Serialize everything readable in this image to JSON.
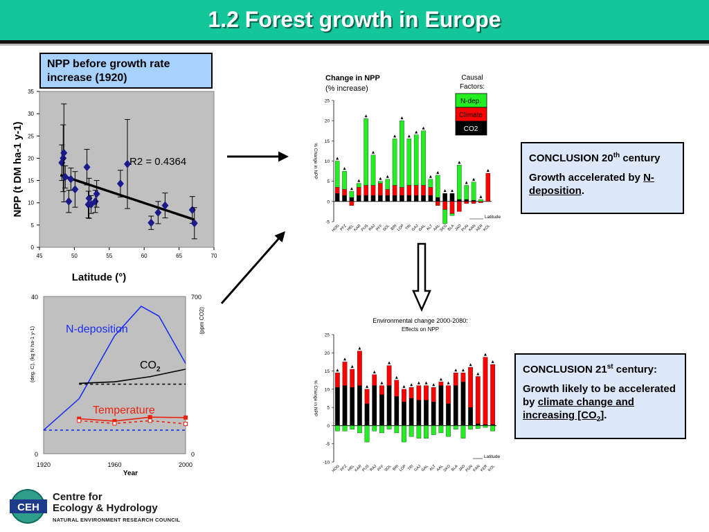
{
  "slide": {
    "title": "1.2 Forest growth in Europe",
    "box_npp": "NPP before growth rate increase (1920)",
    "conclusion20": {
      "heading": "CONCLUSION 20",
      "sup": "th",
      "heading_tail": "century",
      "line1": "Growth accelerated by",
      "line2": "N-deposition",
      "line2_tail": "."
    },
    "conclusion21": {
      "heading": "CONCLUSION 21",
      "sup": "st",
      "heading_tail": "century:",
      "line1": "Growth likely to be accelerated by",
      "line2": "climate change and increasing [CO",
      "line2_sub": "2",
      "line2_tail": "]",
      "line2_end": "."
    },
    "logo": {
      "badge": "CEH",
      "line1": "Centre for",
      "line2": "Ecology & Hydrology",
      "line3": "NATURAL ENVIRONMENT RESEARCH COUNCIL"
    }
  },
  "chart_data": [
    {
      "type": "scatter",
      "ylabel": "NPP (t DM ha-1 y-1)",
      "xlabel": "Latitude (°)",
      "xlim": [
        45,
        70
      ],
      "ylim": [
        0,
        35
      ],
      "xticks": [
        "45",
        "50",
        "55",
        "60",
        "65",
        "70"
      ],
      "yticks": [
        "0",
        "5",
        "10",
        "15",
        "20",
        "25",
        "30",
        "35"
      ],
      "annotation": "R2 = 0.4364",
      "points": [
        {
          "x": 48.2,
          "y": 19,
          "e": 4
        },
        {
          "x": 48.4,
          "y": 20,
          "e": 7.5
        },
        {
          "x": 48.5,
          "y": 21.2,
          "e": 11
        },
        {
          "x": 48.7,
          "y": 15.8,
          "e": 2.5
        },
        {
          "x": 49.2,
          "y": 10.3,
          "e": 2.5
        },
        {
          "x": 49.5,
          "y": 15.3,
          "e": 2.5
        },
        {
          "x": 50.1,
          "y": 13,
          "e": 4
        },
        {
          "x": 51.8,
          "y": 18,
          "e": 4
        },
        {
          "x": 52.0,
          "y": 9.6,
          "e": 3
        },
        {
          "x": 52.1,
          "y": 11,
          "e": 4.5
        },
        {
          "x": 52.4,
          "y": 9.6,
          "e": 2
        },
        {
          "x": 53.0,
          "y": 10.3,
          "e": 2.5
        },
        {
          "x": 53.2,
          "y": 12,
          "e": 3
        },
        {
          "x": 56.6,
          "y": 14.3,
          "e": 3
        },
        {
          "x": 57.6,
          "y": 18.7,
          "e": 10
        },
        {
          "x": 61.0,
          "y": 5.5,
          "e": 1.5
        },
        {
          "x": 62.0,
          "y": 7.8,
          "e": 2.5
        },
        {
          "x": 63.0,
          "y": 9.4,
          "e": 2.8
        },
        {
          "x": 66.9,
          "y": 8.4,
          "e": 3
        },
        {
          "x": 67.2,
          "y": 5.4,
          "e": 3.5
        }
      ],
      "trend": [
        [
          48,
          16.2
        ],
        [
          67.2,
          6.2
        ]
      ]
    },
    {
      "type": "line",
      "xlim": [
        1920,
        2000
      ],
      "xticks": [
        "1920",
        "1960",
        "2000"
      ],
      "xlabel": "Year",
      "ylabel_left": "(deg. C), (kg N ha-1 y-1)",
      "ylabel_right": "(ppm CO2)",
      "left_ticks": [
        "0",
        "40"
      ],
      "right_ticks": [
        "0",
        "700"
      ],
      "ylim": [
        0,
        40
      ],
      "series": [
        {
          "name": "N-deposition",
          "color": "#1a2ef0",
          "points": [
            [
              1920,
              6
            ],
            [
              1940,
              14
            ],
            [
              1960,
              30
            ],
            [
              1975,
              37.5
            ],
            [
              1985,
              35
            ],
            [
              2000,
              23
            ]
          ]
        },
        {
          "name": "CO2",
          "color": "#000000",
          "points": [
            [
              1940,
              17.9
            ],
            [
              1960,
              18.3
            ],
            [
              1980,
              19.6
            ],
            [
              2000,
              21.5
            ]
          ]
        },
        {
          "name": "Temperature",
          "color": "#e8220c",
          "points": [
            [
              1940,
              8.9
            ],
            [
              1960,
              8.3
            ],
            [
              1980,
              9.3
            ],
            [
              2000,
              9.2
            ]
          ]
        },
        {
          "name": "",
          "color": "#e8220c",
          "dashed": true,
          "points": [
            [
              1940,
              8.4
            ],
            [
              1960,
              7.7
            ],
            [
              1980,
              8.4
            ],
            [
              2000,
              7.6
            ]
          ]
        },
        {
          "name": "",
          "color": "#000000",
          "dashed": true,
          "points": [
            [
              1940,
              17.7
            ],
            [
              2000,
              17.7
            ]
          ]
        },
        {
          "name": "",
          "color": "#1a2ef0",
          "dashed": true,
          "points": [
            [
              1920,
              6
            ],
            [
              2000,
              6
            ]
          ]
        }
      ]
    },
    {
      "type": "bar",
      "title": "Change in NPP",
      "subtitle": "(% increase)",
      "ylabel": "% Change in NPP",
      "ylim": [
        -5,
        25
      ],
      "yticks": [
        "-5",
        "0",
        "5",
        "10",
        "15",
        "20",
        "25"
      ],
      "categories": [
        "HOG",
        "PFZ",
        "HEL",
        "KAR",
        "PUS",
        "RAJ",
        "PFF",
        "SOL",
        "BRI",
        "LOP",
        "TRI",
        "GAJ",
        "GAL",
        "ALT",
        "AAL",
        "SKO",
        "BLA",
        "JAD",
        "PUN",
        "KAN",
        "KER",
        "KOL"
      ],
      "x_end_label": "Latitude",
      "legend_title": [
        "Causal",
        "Factors:"
      ],
      "legend": [
        "N-dep.",
        "Climate",
        "CO2"
      ],
      "series": [
        {
          "name": "CO2",
          "color": "#000000",
          "values": [
            2,
            1.5,
            1,
            1.5,
            1.5,
            1.5,
            1.5,
            1.5,
            1.5,
            1.5,
            1.5,
            1.5,
            1.5,
            1.5,
            1,
            2,
            2,
            0.5,
            0.5,
            0.3,
            0,
            0
          ]
        },
        {
          "name": "Climate",
          "color": "#ff0000",
          "values": [
            1.5,
            1.5,
            -1,
            2,
            2.5,
            2.5,
            3,
            1.5,
            2.5,
            2,
            2.5,
            2.5,
            2.5,
            2,
            -1,
            -2,
            -3,
            -2.5,
            -0.5,
            -0.5,
            -0.3,
            7
          ]
        },
        {
          "name": "N-dep.",
          "color": "#22ee22",
          "values": [
            6.5,
            4.5,
            1.5,
            1.0,
            16.5,
            7.5,
            0.5,
            2.5,
            11.5,
            16.5,
            11.5,
            12.5,
            13.5,
            2,
            5.5,
            -3.5,
            -0.5,
            8.5,
            3.5,
            4.5,
            0.5,
            0
          ]
        }
      ]
    },
    {
      "type": "bar",
      "title": "Environmental change 2000-2080:",
      "subtitle": "Effects on NPP",
      "ylabel": "% Change in NPP",
      "ylim": [
        -10,
        25
      ],
      "yticks": [
        "-10",
        "-5",
        "0",
        "5",
        "10",
        "15",
        "20",
        "25"
      ],
      "categories": [
        "HOG",
        "PFZ",
        "HEL",
        "KAR",
        "PUS",
        "RAJ",
        "PFF",
        "SOL",
        "BRI",
        "LOP",
        "TRI",
        "GAJ",
        "GAL",
        "ALT",
        "AAL",
        "SKO",
        "BLA",
        "JAD",
        "PUN",
        "KAN",
        "KER",
        "KOL"
      ],
      "x_end_label": "Latitude",
      "series": [
        {
          "name": "CO2",
          "color": "#000000",
          "values": [
            10.5,
            11,
            10.5,
            11,
            6,
            11,
            8.5,
            11,
            8,
            6.5,
            7.5,
            7,
            7,
            6.5,
            11,
            6,
            11,
            12,
            5,
            0.5,
            0.3,
            0.3
          ]
        },
        {
          "name": "Climate",
          "color": "#ff0000",
          "values": [
            4,
            6.5,
            5,
            9.5,
            4,
            3,
            2.5,
            5.5,
            4.5,
            3.5,
            3,
            4,
            4,
            4,
            1,
            5,
            3.5,
            2.5,
            11,
            13,
            18.5,
            16.5
          ]
        },
        {
          "name": "N-dep.",
          "color": "#22ee22",
          "values": [
            -1.5,
            -1.5,
            -1,
            -2,
            -4.5,
            -1.5,
            -2,
            -1,
            -2,
            -4.5,
            -3,
            -3.5,
            -3.5,
            -2.5,
            -2,
            -3,
            -1,
            -3.5,
            -1,
            -0.8,
            -0.5,
            -1.5
          ]
        }
      ]
    }
  ]
}
